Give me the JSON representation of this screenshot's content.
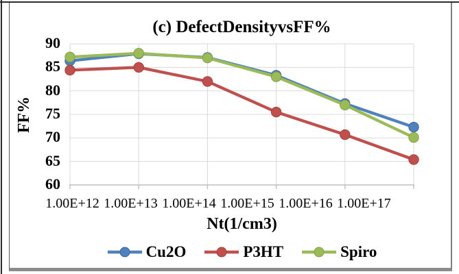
{
  "chart_data": {
    "type": "line",
    "title": "(c) DefectDensityvsFF%",
    "xlabel": "Nt(1/cm3)",
    "ylabel": "FF%",
    "categories": [
      "1.00E+12",
      "1.00E+13",
      "1.00E+14",
      "1.00E+15",
      "1.00E+16",
      "1.00E+17"
    ],
    "y_ticks": [
      90,
      85,
      80,
      75,
      70,
      65,
      60
    ],
    "ylim": [
      60,
      90
    ],
    "grid": true,
    "legend_position": "bottom",
    "series": [
      {
        "name": "Cu2O",
        "color": "#4F81BD",
        "marker_stroke": "#3D6699",
        "values": [
          86.4,
          87.9,
          87.1,
          83.3,
          77.3,
          72.3
        ]
      },
      {
        "name": "P3HT",
        "color": "#C0504D",
        "marker_stroke": "#9E403E",
        "values": [
          84.4,
          85.0,
          82.0,
          75.5,
          70.7,
          65.4
        ]
      },
      {
        "name": "Spiro",
        "color": "#9BBB59",
        "marker_stroke": "#82A045",
        "values": [
          87.2,
          88.0,
          87.0,
          83.0,
          77.0,
          70.1
        ]
      }
    ],
    "colors": {
      "gridline": "#D9D9D9",
      "axis_line": "#BFBFBF",
      "text": "#000000",
      "frame_border": "#595959",
      "frame_bottom": "#8c8c8c"
    }
  }
}
